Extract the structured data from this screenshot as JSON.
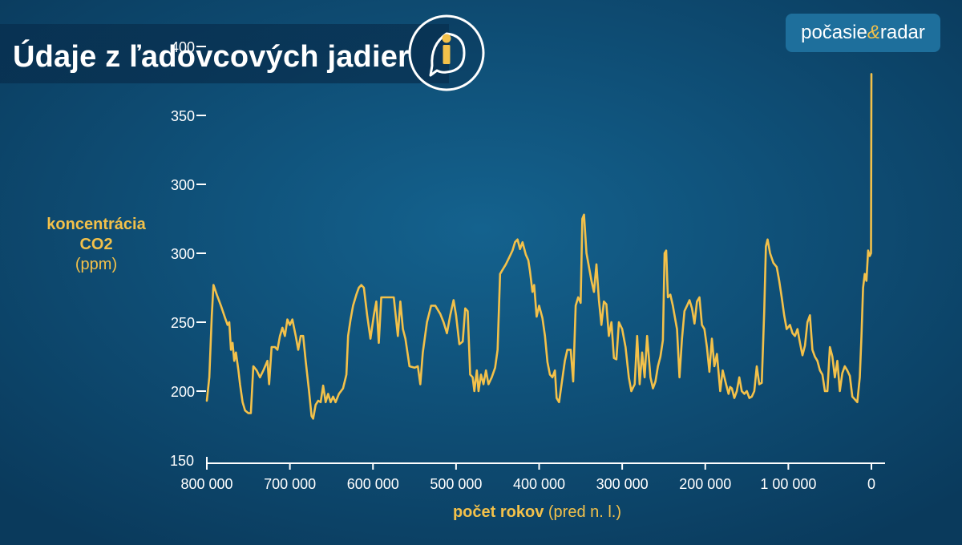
{
  "header": {
    "title": "Údaje z ľadovcových jadier",
    "info_icon": "info-icon",
    "brand": {
      "left": "počasie",
      "amp": "&",
      "right": "radar"
    }
  },
  "colors": {
    "accent": "#f3c14a",
    "background": "#0f5078",
    "text": "#ffffff"
  },
  "chart_data": {
    "type": "line",
    "title": "Údaje z ľadovcových jadier",
    "ylabel": {
      "line1": "koncentrácia",
      "line2": "CO2",
      "unit": "(ppm)"
    },
    "xlabel": {
      "main": "počet rokov",
      "unit": "(pred n. l.)"
    },
    "y_ticks": [
      "150",
      "200",
      "250",
      "300",
      "300",
      "350",
      "400"
    ],
    "x_ticks": [
      "800 000",
      "700 000",
      "600 000",
      "500 000",
      "400 000",
      "300 000",
      "200 000",
      "1 00 000",
      "0"
    ],
    "xlim": [
      800000,
      0
    ],
    "ylim_visual_units": [
      150,
      450
    ],
    "grid": false,
    "note": "y tick labels as printed; axis positions treated as a uniform 150–450 scale",
    "series": [
      {
        "values": [
          [
            800000,
            193
          ],
          [
            797000,
            210
          ],
          [
            794000,
            255
          ],
          [
            792000,
            277
          ],
          [
            788000,
            270
          ],
          [
            783000,
            262
          ],
          [
            778000,
            253
          ],
          [
            775000,
            248
          ],
          [
            773000,
            250
          ],
          [
            771000,
            230
          ],
          [
            769000,
            235
          ],
          [
            767000,
            222
          ],
          [
            765000,
            228
          ],
          [
            762000,
            215
          ],
          [
            760000,
            205
          ],
          [
            757000,
            192
          ],
          [
            754000,
            186
          ],
          [
            750000,
            184
          ],
          [
            747000,
            184
          ],
          [
            744000,
            218
          ],
          [
            740000,
            215
          ],
          [
            736000,
            210
          ],
          [
            732000,
            215
          ],
          [
            727000,
            222
          ],
          [
            725000,
            205
          ],
          [
            722000,
            232
          ],
          [
            718000,
            232
          ],
          [
            715000,
            230
          ],
          [
            712000,
            240
          ],
          [
            709000,
            246
          ],
          [
            706000,
            240
          ],
          [
            703000,
            252
          ],
          [
            700000,
            248
          ],
          [
            697000,
            252
          ],
          [
            693000,
            240
          ],
          [
            690000,
            230
          ],
          [
            687000,
            240
          ],
          [
            684000,
            240
          ],
          [
            681000,
            222
          ],
          [
            677000,
            200
          ],
          [
            674000,
            182
          ],
          [
            672000,
            180
          ],
          [
            669000,
            190
          ],
          [
            666000,
            193
          ],
          [
            663000,
            192
          ],
          [
            660000,
            204
          ],
          [
            657000,
            192
          ],
          [
            654000,
            198
          ],
          [
            651000,
            192
          ],
          [
            648000,
            196
          ],
          [
            645000,
            192
          ],
          [
            641000,
            198
          ],
          [
            636000,
            202
          ],
          [
            632000,
            212
          ],
          [
            630000,
            240
          ],
          [
            627000,
            252
          ],
          [
            624000,
            262
          ],
          [
            620000,
            270
          ],
          [
            617000,
            275
          ],
          [
            614000,
            277
          ],
          [
            611000,
            275
          ],
          [
            607000,
            255
          ],
          [
            603000,
            238
          ],
          [
            599000,
            255
          ],
          [
            596000,
            265
          ],
          [
            593000,
            235
          ],
          [
            590000,
            268
          ],
          [
            585000,
            268
          ],
          [
            581000,
            268
          ],
          [
            575000,
            268
          ],
          [
            570000,
            240
          ],
          [
            567000,
            265
          ],
          [
            564000,
            245
          ],
          [
            561000,
            238
          ],
          [
            556000,
            218
          ],
          [
            550000,
            217
          ],
          [
            546000,
            218
          ],
          [
            543000,
            205
          ],
          [
            540000,
            228
          ],
          [
            535000,
            250
          ],
          [
            530000,
            262
          ],
          [
            525000,
            262
          ],
          [
            519000,
            256
          ],
          [
            515000,
            250
          ],
          [
            511000,
            242
          ],
          [
            507000,
            255
          ],
          [
            503000,
            266
          ],
          [
            500000,
            255
          ],
          [
            496000,
            234
          ],
          [
            492000,
            236
          ],
          [
            489000,
            260
          ],
          [
            486000,
            258
          ],
          [
            483000,
            212
          ],
          [
            480000,
            210
          ],
          [
            478000,
            200
          ],
          [
            475000,
            215
          ],
          [
            473000,
            200
          ],
          [
            470000,
            212
          ],
          [
            467000,
            205
          ],
          [
            464000,
            215
          ],
          [
            461000,
            205
          ],
          [
            457000,
            210
          ],
          [
            453000,
            217
          ],
          [
            450000,
            230
          ],
          [
            447000,
            285
          ],
          [
            444000,
            288
          ],
          [
            440000,
            292
          ],
          [
            436000,
            297
          ],
          [
            432000,
            302
          ],
          [
            429000,
            308
          ],
          [
            426000,
            310
          ],
          [
            423000,
            303
          ],
          [
            420000,
            308
          ],
          [
            416000,
            299
          ],
          [
            413000,
            295
          ],
          [
            411000,
            287
          ],
          [
            408000,
            272
          ],
          [
            406000,
            277
          ],
          [
            403000,
            254
          ],
          [
            400000,
            262
          ],
          [
            396000,
            253
          ],
          [
            393000,
            240
          ],
          [
            390000,
            221
          ],
          [
            387000,
            212
          ],
          [
            384000,
            210
          ],
          [
            381000,
            215
          ],
          [
            379000,
            195
          ],
          [
            376000,
            192
          ],
          [
            373000,
            205
          ],
          [
            369000,
            222
          ],
          [
            366000,
            230
          ],
          [
            362000,
            230
          ],
          [
            359000,
            207
          ],
          [
            356000,
            262
          ],
          [
            353000,
            268
          ],
          [
            350000,
            264
          ],
          [
            348000,
            325
          ],
          [
            346000,
            328
          ],
          [
            343000,
            300
          ],
          [
            340000,
            290
          ],
          [
            337000,
            280
          ],
          [
            334000,
            272
          ],
          [
            331000,
            292
          ],
          [
            328000,
            266
          ],
          [
            325000,
            248
          ],
          [
            322000,
            265
          ],
          [
            319000,
            263
          ],
          [
            316000,
            240
          ],
          [
            313000,
            250
          ],
          [
            310000,
            224
          ],
          [
            307000,
            223
          ],
          [
            304000,
            250
          ],
          [
            300000,
            245
          ],
          [
            296000,
            232
          ],
          [
            292000,
            210
          ],
          [
            289000,
            200
          ],
          [
            285000,
            205
          ],
          [
            282000,
            240
          ],
          [
            279000,
            205
          ],
          [
            276000,
            228
          ],
          [
            273000,
            210
          ],
          [
            270000,
            240
          ],
          [
            266000,
            210
          ],
          [
            263000,
            202
          ],
          [
            260000,
            207
          ],
          [
            257000,
            218
          ],
          [
            254000,
            225
          ],
          [
            251000,
            237
          ],
          [
            249000,
            300
          ],
          [
            247000,
            302
          ],
          [
            245000,
            268
          ],
          [
            242000,
            270
          ],
          [
            239000,
            262
          ],
          [
            237000,
            255
          ],
          [
            234000,
            245
          ],
          [
            231000,
            210
          ],
          [
            228000,
            238
          ],
          [
            225000,
            258
          ],
          [
            222000,
            262
          ],
          [
            219000,
            266
          ],
          [
            216000,
            260
          ],
          [
            213000,
            249
          ],
          [
            210000,
            265
          ],
          [
            207000,
            268
          ],
          [
            204000,
            248
          ],
          [
            201000,
            245
          ],
          [
            198000,
            232
          ],
          [
            195000,
            214
          ],
          [
            192000,
            238
          ],
          [
            189000,
            218
          ],
          [
            186000,
            227
          ],
          [
            182000,
            200
          ],
          [
            179000,
            215
          ],
          [
            175000,
            205
          ],
          [
            172000,
            198
          ],
          [
            170000,
            203
          ],
          [
            168000,
            202
          ],
          [
            165000,
            195
          ],
          [
            162000,
            200
          ],
          [
            159000,
            210
          ],
          [
            156000,
            200
          ],
          [
            153000,
            198
          ],
          [
            150000,
            200
          ],
          [
            147000,
            195
          ],
          [
            144000,
            196
          ],
          [
            141000,
            200
          ],
          [
            138000,
            218
          ],
          [
            135000,
            205
          ],
          [
            132000,
            206
          ],
          [
            129000,
            258
          ],
          [
            127000,
            305
          ],
          [
            125000,
            310
          ],
          [
            122000,
            300
          ],
          [
            118000,
            293
          ],
          [
            114000,
            290
          ],
          [
            111000,
            280
          ],
          [
            108000,
            268
          ],
          [
            105000,
            255
          ],
          [
            102000,
            245
          ],
          [
            98000,
            248
          ],
          [
            95000,
            242
          ],
          [
            92000,
            240
          ],
          [
            89000,
            245
          ],
          [
            86000,
            235
          ],
          [
            83000,
            226
          ],
          [
            80000,
            233
          ],
          [
            77000,
            250
          ],
          [
            74000,
            255
          ],
          [
            71000,
            230
          ],
          [
            68000,
            225
          ],
          [
            65000,
            222
          ],
          [
            62000,
            215
          ],
          [
            59000,
            212
          ],
          [
            56000,
            200
          ],
          [
            53000,
            200
          ],
          [
            50000,
            232
          ],
          [
            47000,
            225
          ],
          [
            44000,
            210
          ],
          [
            41000,
            222
          ],
          [
            38000,
            200
          ],
          [
            35000,
            213
          ],
          [
            32000,
            218
          ],
          [
            29000,
            215
          ],
          [
            26000,
            211
          ],
          [
            23000,
            196
          ],
          [
            20000,
            194
          ],
          [
            17000,
            192
          ],
          [
            14000,
            210
          ],
          [
            12000,
            240
          ],
          [
            10000,
            275
          ],
          [
            8000,
            285
          ],
          [
            6000,
            280
          ],
          [
            4000,
            302
          ],
          [
            2000,
            298
          ],
          [
            500,
            300
          ],
          [
            0,
            430
          ]
        ]
      }
    ]
  }
}
